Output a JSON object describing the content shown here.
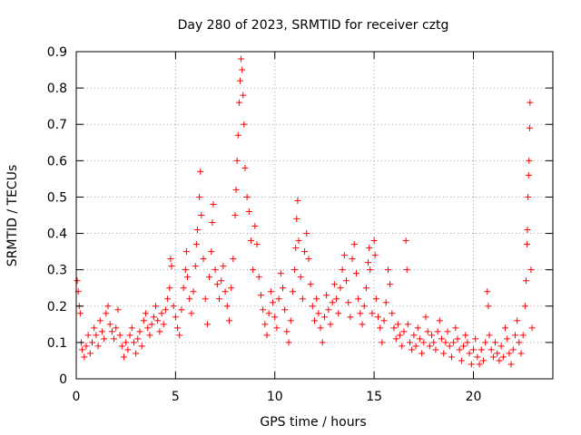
{
  "chart_data": {
    "type": "scatter",
    "title": "Day 280 of 2023, SRMTID for receiver cztg",
    "xlabel": "GPS time / hours",
    "ylabel": "SRMTID / TECUs",
    "xlim": [
      0,
      24
    ],
    "ylim": [
      0,
      0.9
    ],
    "x_ticks": [
      0,
      5,
      10,
      15,
      20
    ],
    "x_tick_labels": [
      "0",
      "5",
      "10",
      "15",
      "20"
    ],
    "y_ticks": [
      0,
      0.1,
      0.2,
      0.3,
      0.4,
      0.5,
      0.6,
      0.7,
      0.8,
      0.9
    ],
    "y_tick_labels": [
      "0",
      "0.1",
      "0.2",
      "0.3",
      "0.4",
      "0.5",
      "0.6",
      "0.7",
      "0.8",
      "0.9"
    ],
    "grid": true,
    "marker": "+",
    "marker_color": "#ff0000",
    "series": [
      {
        "name": "SRMTID",
        "points": [
          [
            0.05,
            0.27
          ],
          [
            0.1,
            0.24
          ],
          [
            0.15,
            0.2
          ],
          [
            0.2,
            0.18
          ],
          [
            0.25,
            0.1
          ],
          [
            0.3,
            0.08
          ],
          [
            0.4,
            0.06
          ],
          [
            0.5,
            0.09
          ],
          [
            0.6,
            0.12
          ],
          [
            0.7,
            0.07
          ],
          [
            0.8,
            0.1
          ],
          [
            0.9,
            0.14
          ],
          [
            1.0,
            0.12
          ],
          [
            1.1,
            0.09
          ],
          [
            1.2,
            0.16
          ],
          [
            1.3,
            0.13
          ],
          [
            1.4,
            0.11
          ],
          [
            1.5,
            0.18
          ],
          [
            1.6,
            0.2
          ],
          [
            1.7,
            0.15
          ],
          [
            1.8,
            0.13
          ],
          [
            1.9,
            0.11
          ],
          [
            2.0,
            0.14
          ],
          [
            2.1,
            0.19
          ],
          [
            2.2,
            0.12
          ],
          [
            2.3,
            0.09
          ],
          [
            2.4,
            0.06
          ],
          [
            2.5,
            0.1
          ],
          [
            2.6,
            0.08
          ],
          [
            2.7,
            0.12
          ],
          [
            2.8,
            0.14
          ],
          [
            2.9,
            0.1
          ],
          [
            3.0,
            0.07
          ],
          [
            3.1,
            0.11
          ],
          [
            3.2,
            0.13
          ],
          [
            3.3,
            0.09
          ],
          [
            3.4,
            0.16
          ],
          [
            3.5,
            0.18
          ],
          [
            3.6,
            0.14
          ],
          [
            3.7,
            0.12
          ],
          [
            3.8,
            0.15
          ],
          [
            3.9,
            0.17
          ],
          [
            4.0,
            0.2
          ],
          [
            4.1,
            0.16
          ],
          [
            4.2,
            0.13
          ],
          [
            4.3,
            0.18
          ],
          [
            4.4,
            0.15
          ],
          [
            4.5,
            0.19
          ],
          [
            4.6,
            0.22
          ],
          [
            4.7,
            0.25
          ],
          [
            4.75,
            0.33
          ],
          [
            4.8,
            0.31
          ],
          [
            4.9,
            0.2
          ],
          [
            5.0,
            0.17
          ],
          [
            5.1,
            0.14
          ],
          [
            5.2,
            0.12
          ],
          [
            5.3,
            0.19
          ],
          [
            5.4,
            0.25
          ],
          [
            5.5,
            0.3
          ],
          [
            5.55,
            0.35
          ],
          [
            5.6,
            0.28
          ],
          [
            5.7,
            0.22
          ],
          [
            5.8,
            0.18
          ],
          [
            5.9,
            0.24
          ],
          [
            6.0,
            0.31
          ],
          [
            6.05,
            0.37
          ],
          [
            6.1,
            0.41
          ],
          [
            6.2,
            0.5
          ],
          [
            6.25,
            0.57
          ],
          [
            6.3,
            0.45
          ],
          [
            6.4,
            0.33
          ],
          [
            6.5,
            0.22
          ],
          [
            6.6,
            0.15
          ],
          [
            6.7,
            0.28
          ],
          [
            6.8,
            0.35
          ],
          [
            6.85,
            0.43
          ],
          [
            6.9,
            0.48
          ],
          [
            7.0,
            0.3
          ],
          [
            7.1,
            0.26
          ],
          [
            7.2,
            0.22
          ],
          [
            7.3,
            0.27
          ],
          [
            7.4,
            0.31
          ],
          [
            7.5,
            0.24
          ],
          [
            7.6,
            0.2
          ],
          [
            7.7,
            0.16
          ],
          [
            7.8,
            0.25
          ],
          [
            7.9,
            0.33
          ],
          [
            8.0,
            0.45
          ],
          [
            8.05,
            0.52
          ],
          [
            8.1,
            0.6
          ],
          [
            8.15,
            0.67
          ],
          [
            8.2,
            0.76
          ],
          [
            8.25,
            0.82
          ],
          [
            8.3,
            0.88
          ],
          [
            8.35,
            0.85
          ],
          [
            8.4,
            0.78
          ],
          [
            8.45,
            0.7
          ],
          [
            8.5,
            0.58
          ],
          [
            8.6,
            0.5
          ],
          [
            8.7,
            0.46
          ],
          [
            8.8,
            0.38
          ],
          [
            8.9,
            0.3
          ],
          [
            9.0,
            0.42
          ],
          [
            9.1,
            0.37
          ],
          [
            9.2,
            0.28
          ],
          [
            9.3,
            0.23
          ],
          [
            9.4,
            0.19
          ],
          [
            9.5,
            0.15
          ],
          [
            9.6,
            0.12
          ],
          [
            9.7,
            0.18
          ],
          [
            9.8,
            0.24
          ],
          [
            9.9,
            0.21
          ],
          [
            10.0,
            0.17
          ],
          [
            10.1,
            0.14
          ],
          [
            10.2,
            0.22
          ],
          [
            10.3,
            0.29
          ],
          [
            10.4,
            0.25
          ],
          [
            10.5,
            0.19
          ],
          [
            10.6,
            0.13
          ],
          [
            10.7,
            0.1
          ],
          [
            10.8,
            0.16
          ],
          [
            10.9,
            0.24
          ],
          [
            11.0,
            0.3
          ],
          [
            11.05,
            0.36
          ],
          [
            11.1,
            0.44
          ],
          [
            11.15,
            0.49
          ],
          [
            11.2,
            0.38
          ],
          [
            11.3,
            0.28
          ],
          [
            11.4,
            0.22
          ],
          [
            11.5,
            0.35
          ],
          [
            11.6,
            0.4
          ],
          [
            11.7,
            0.33
          ],
          [
            11.8,
            0.26
          ],
          [
            11.9,
            0.2
          ],
          [
            12.0,
            0.16
          ],
          [
            12.1,
            0.22
          ],
          [
            12.2,
            0.18
          ],
          [
            12.3,
            0.14
          ],
          [
            12.4,
            0.1
          ],
          [
            12.5,
            0.17
          ],
          [
            12.6,
            0.23
          ],
          [
            12.7,
            0.19
          ],
          [
            12.8,
            0.15
          ],
          [
            12.9,
            0.21
          ],
          [
            13.0,
            0.26
          ],
          [
            13.1,
            0.22
          ],
          [
            13.2,
            0.18
          ],
          [
            13.3,
            0.25
          ],
          [
            13.4,
            0.3
          ],
          [
            13.5,
            0.34
          ],
          [
            13.6,
            0.27
          ],
          [
            13.7,
            0.21
          ],
          [
            13.8,
            0.17
          ],
          [
            13.9,
            0.33
          ],
          [
            14.0,
            0.37
          ],
          [
            14.1,
            0.29
          ],
          [
            14.2,
            0.22
          ],
          [
            14.3,
            0.18
          ],
          [
            14.4,
            0.15
          ],
          [
            14.5,
            0.2
          ],
          [
            14.6,
            0.25
          ],
          [
            14.7,
            0.32
          ],
          [
            14.75,
            0.36
          ],
          [
            14.8,
            0.3
          ],
          [
            14.9,
            0.18
          ],
          [
            15.0,
            0.38
          ],
          [
            15.05,
            0.34
          ],
          [
            15.1,
            0.22
          ],
          [
            15.2,
            0.17
          ],
          [
            15.3,
            0.14
          ],
          [
            15.4,
            0.1
          ],
          [
            15.5,
            0.16
          ],
          [
            15.6,
            0.21
          ],
          [
            15.7,
            0.3
          ],
          [
            15.8,
            0.26
          ],
          [
            15.9,
            0.18
          ],
          [
            16.0,
            0.14
          ],
          [
            16.1,
            0.11
          ],
          [
            16.2,
            0.15
          ],
          [
            16.3,
            0.12
          ],
          [
            16.4,
            0.09
          ],
          [
            16.5,
            0.13
          ],
          [
            16.6,
            0.38
          ],
          [
            16.65,
            0.3
          ],
          [
            16.7,
            0.15
          ],
          [
            16.8,
            0.1
          ],
          [
            16.9,
            0.08
          ],
          [
            17.0,
            0.12
          ],
          [
            17.1,
            0.09
          ],
          [
            17.2,
            0.14
          ],
          [
            17.3,
            0.11
          ],
          [
            17.4,
            0.07
          ],
          [
            17.5,
            0.1
          ],
          [
            17.6,
            0.17
          ],
          [
            17.7,
            0.13
          ],
          [
            17.8,
            0.09
          ],
          [
            17.9,
            0.12
          ],
          [
            18.0,
            0.1
          ],
          [
            18.1,
            0.08
          ],
          [
            18.2,
            0.13
          ],
          [
            18.3,
            0.16
          ],
          [
            18.4,
            0.11
          ],
          [
            18.5,
            0.07
          ],
          [
            18.6,
            0.1
          ],
          [
            18.7,
            0.13
          ],
          [
            18.8,
            0.09
          ],
          [
            18.9,
            0.06
          ],
          [
            19.0,
            0.1
          ],
          [
            19.1,
            0.14
          ],
          [
            19.2,
            0.11
          ],
          [
            19.3,
            0.08
          ],
          [
            19.4,
            0.05
          ],
          [
            19.5,
            0.09
          ],
          [
            19.6,
            0.12
          ],
          [
            19.7,
            0.1
          ],
          [
            19.8,
            0.07
          ],
          [
            19.9,
            0.04
          ],
          [
            20.0,
            0.08
          ],
          [
            20.1,
            0.11
          ],
          [
            20.2,
            0.06
          ],
          [
            20.3,
            0.04
          ],
          [
            20.4,
            0.08
          ],
          [
            20.5,
            0.05
          ],
          [
            20.6,
            0.1
          ],
          [
            20.7,
            0.24
          ],
          [
            20.75,
            0.2
          ],
          [
            20.8,
            0.12
          ],
          [
            20.9,
            0.08
          ],
          [
            21.0,
            0.06
          ],
          [
            21.1,
            0.1
          ],
          [
            21.2,
            0.07
          ],
          [
            21.3,
            0.05
          ],
          [
            21.4,
            0.09
          ],
          [
            21.5,
            0.06
          ],
          [
            21.6,
            0.14
          ],
          [
            21.7,
            0.11
          ],
          [
            21.8,
            0.07
          ],
          [
            21.9,
            0.04
          ],
          [
            22.0,
            0.08
          ],
          [
            22.1,
            0.12
          ],
          [
            22.2,
            0.16
          ],
          [
            22.3,
            0.1
          ],
          [
            22.4,
            0.07
          ],
          [
            22.5,
            0.12
          ],
          [
            22.6,
            0.2
          ],
          [
            22.65,
            0.27
          ],
          [
            22.7,
            0.37
          ],
          [
            22.72,
            0.41
          ],
          [
            22.75,
            0.5
          ],
          [
            22.78,
            0.56
          ],
          [
            22.8,
            0.6
          ],
          [
            22.83,
            0.69
          ],
          [
            22.85,
            0.76
          ],
          [
            22.9,
            0.3
          ],
          [
            22.95,
            0.14
          ]
        ]
      }
    ]
  }
}
